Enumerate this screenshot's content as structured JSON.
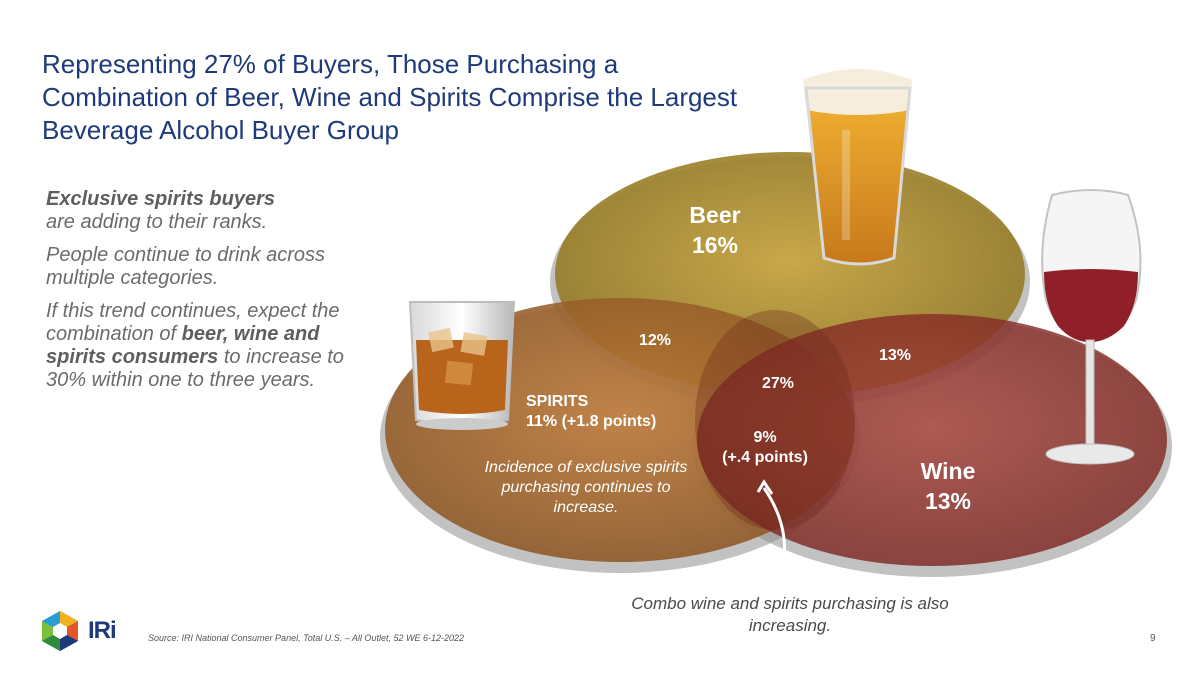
{
  "title": "Representing 27% of Buyers, Those Purchasing a Combination of Beer, Wine and Spirits Comprise the Largest Beverage Alcohol Buyer Group",
  "side": {
    "p1_bold": "Exclusive spirits buyers",
    "p1_rest": "are adding to their ranks.",
    "p2": "People continue to drink across multiple categories.",
    "p3_a": "If this trend continues, expect the combination of",
    "p3_bold": "beer, wine and spirits consumers",
    "p3_b": "to increase to 30% within one to three years."
  },
  "diagram": {
    "beer": {
      "name": "Beer",
      "value": "16%",
      "color": "#a38a2a"
    },
    "wine": {
      "name": "Wine",
      "value": "13%",
      "color": "#8a2a22"
    },
    "spirits": {
      "name": "SPIRITS",
      "value": "11% (+1.8 points)",
      "color": "#a3622a"
    },
    "beer_spirits": "12%",
    "beer_wine": "13%",
    "all_three": "27%",
    "wine_spirits_value": "9%",
    "wine_spirits_change": "(+.4 points)",
    "spirits_note": "Incidence of exclusive spirits purchasing continues to increase.",
    "combo_note": "Combo wine and spirits purchasing is also increasing."
  },
  "icons": [
    "beer-glass-icon",
    "wine-glass-icon",
    "whiskey-glass-icon",
    "iri-logo-icon"
  ],
  "brand": "IRi",
  "source": "Source: IRI National Consumer Panel, Total U.S. – All Outlet, 52 WE 6-12-2022",
  "page_number": "9"
}
